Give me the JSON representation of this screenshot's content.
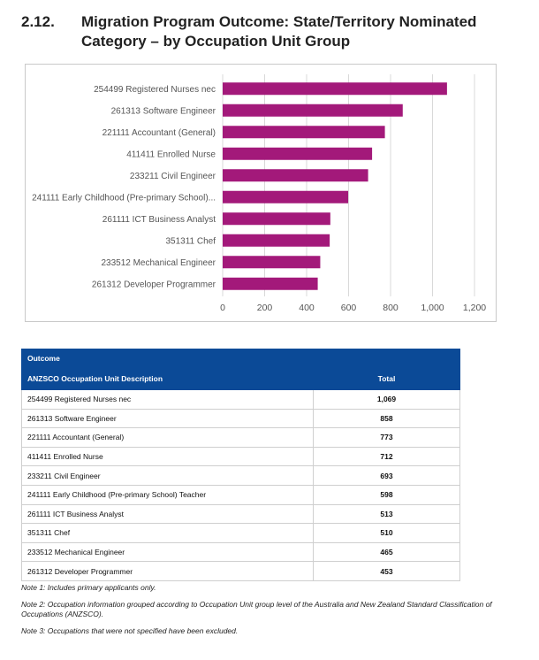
{
  "section": {
    "number": "2.12.",
    "title": "Migration Program Outcome: State/Territory Nominated Category – by Occupation Unit Group"
  },
  "chart_data": {
    "type": "bar",
    "orientation": "horizontal",
    "categories": [
      "254499 Registered Nurses nec",
      "261313 Software Engineer",
      "221111 Accountant (General)",
      "411411 Enrolled Nurse",
      "233211 Civil Engineer",
      "241111 Early Childhood (Pre-primary School)...",
      "261111 ICT Business Analyst",
      "351311 Chef",
      "233512 Mechanical Engineer",
      "261312 Developer Programmer"
    ],
    "values": [
      1069,
      858,
      773,
      712,
      693,
      598,
      513,
      510,
      465,
      453
    ],
    "xlim": [
      0,
      1200
    ],
    "xticks": [
      "0",
      "200",
      "400",
      "600",
      "800",
      "1,000",
      "1,200"
    ],
    "xtick_values": [
      0,
      200,
      400,
      600,
      800,
      1000,
      1200
    ],
    "grid": "vertical",
    "bar_color": "#a3197a"
  },
  "table": {
    "group_header": "Outcome",
    "columns": [
      "ANZSCO Occupation Unit Description",
      "Total"
    ],
    "rows": [
      [
        "254499 Registered Nurses nec",
        "1,069"
      ],
      [
        "261313 Software Engineer",
        "858"
      ],
      [
        "221111 Accountant (General)",
        "773"
      ],
      [
        "411411 Enrolled Nurse",
        "712"
      ],
      [
        "233211 Civil Engineer",
        "693"
      ],
      [
        "241111 Early Childhood (Pre-primary School) Teacher",
        "598"
      ],
      [
        "261111 ICT Business Analyst",
        "513"
      ],
      [
        "351311 Chef",
        "510"
      ],
      [
        "233512 Mechanical Engineer",
        "465"
      ],
      [
        "261312 Developer Programmer",
        "453"
      ]
    ],
    "header_color": "#0b4a97"
  },
  "notes": [
    "Note 1: Includes primary applicants only.",
    "Note 2: Occupation information grouped according to Occupation Unit group level of the Australia and New Zealand Standard Classification of Occupations (ANZSCO).",
    "Note 3: Occupations that were not specified have been excluded."
  ]
}
